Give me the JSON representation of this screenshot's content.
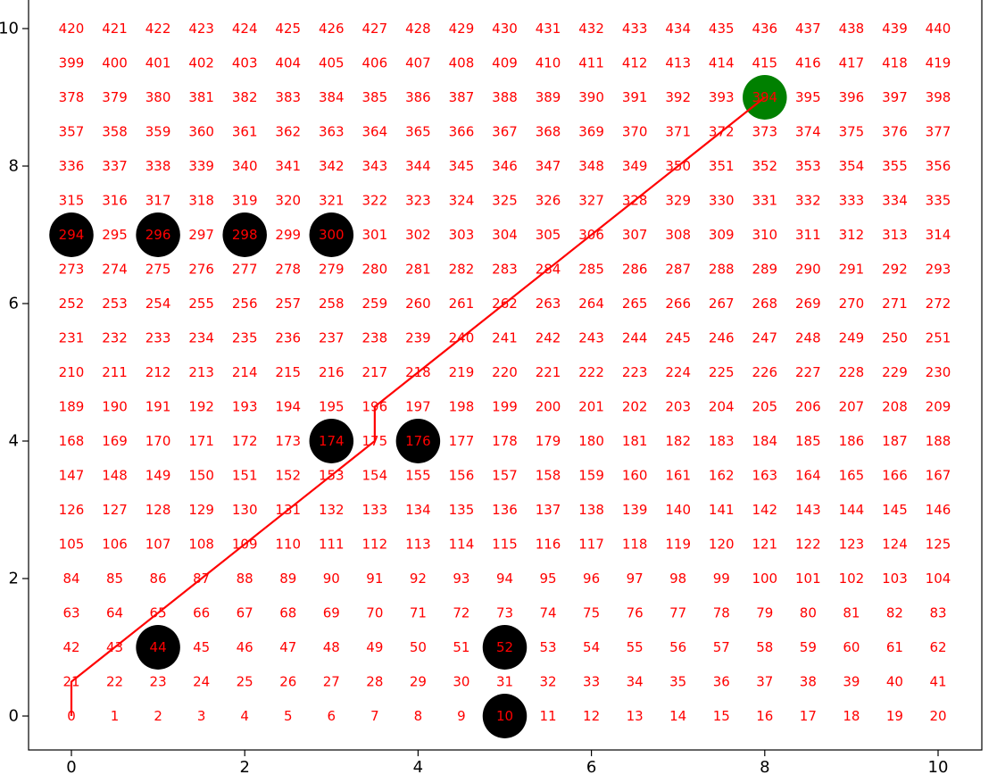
{
  "chart_data": {
    "type": "scatter",
    "title": "",
    "xlabel": "",
    "ylabel": "",
    "xlim": [
      -0.6,
      10.5
    ],
    "ylim": [
      -0.5,
      10.3
    ],
    "xticks": [
      0,
      2,
      4,
      6,
      8,
      10
    ],
    "yticks": [
      0,
      2,
      4,
      6,
      8,
      10
    ],
    "grid": false,
    "legend": "none",
    "grid_size": {
      "cols": 21,
      "rows": 21,
      "x_step": 0.5,
      "y_step": 0.5
    },
    "cell_label_color": "#ff0000",
    "obstacles": {
      "color": "#000000",
      "points": [
        {
          "x": 5,
          "y": 0,
          "label": "10"
        },
        {
          "x": 1,
          "y": 1,
          "label": "44"
        },
        {
          "x": 5,
          "y": 1,
          "label": "52"
        },
        {
          "x": 3,
          "y": 4,
          "label": "174"
        },
        {
          "x": 4,
          "y": 4,
          "label": "176"
        },
        {
          "x": 0,
          "y": 7,
          "label": "294"
        },
        {
          "x": 1,
          "y": 7,
          "label": "296"
        },
        {
          "x": 2,
          "y": 7,
          "label": "298"
        },
        {
          "x": 3,
          "y": 7,
          "label": "300"
        }
      ]
    },
    "goal": {
      "x": 8,
      "y": 9,
      "label": "394",
      "color": "#008000"
    },
    "path": {
      "color": "#ff0000",
      "x": [
        0,
        0,
        3.5,
        3.5,
        8
      ],
      "y": [
        0,
        0.5,
        4,
        4.5,
        9
      ]
    }
  }
}
